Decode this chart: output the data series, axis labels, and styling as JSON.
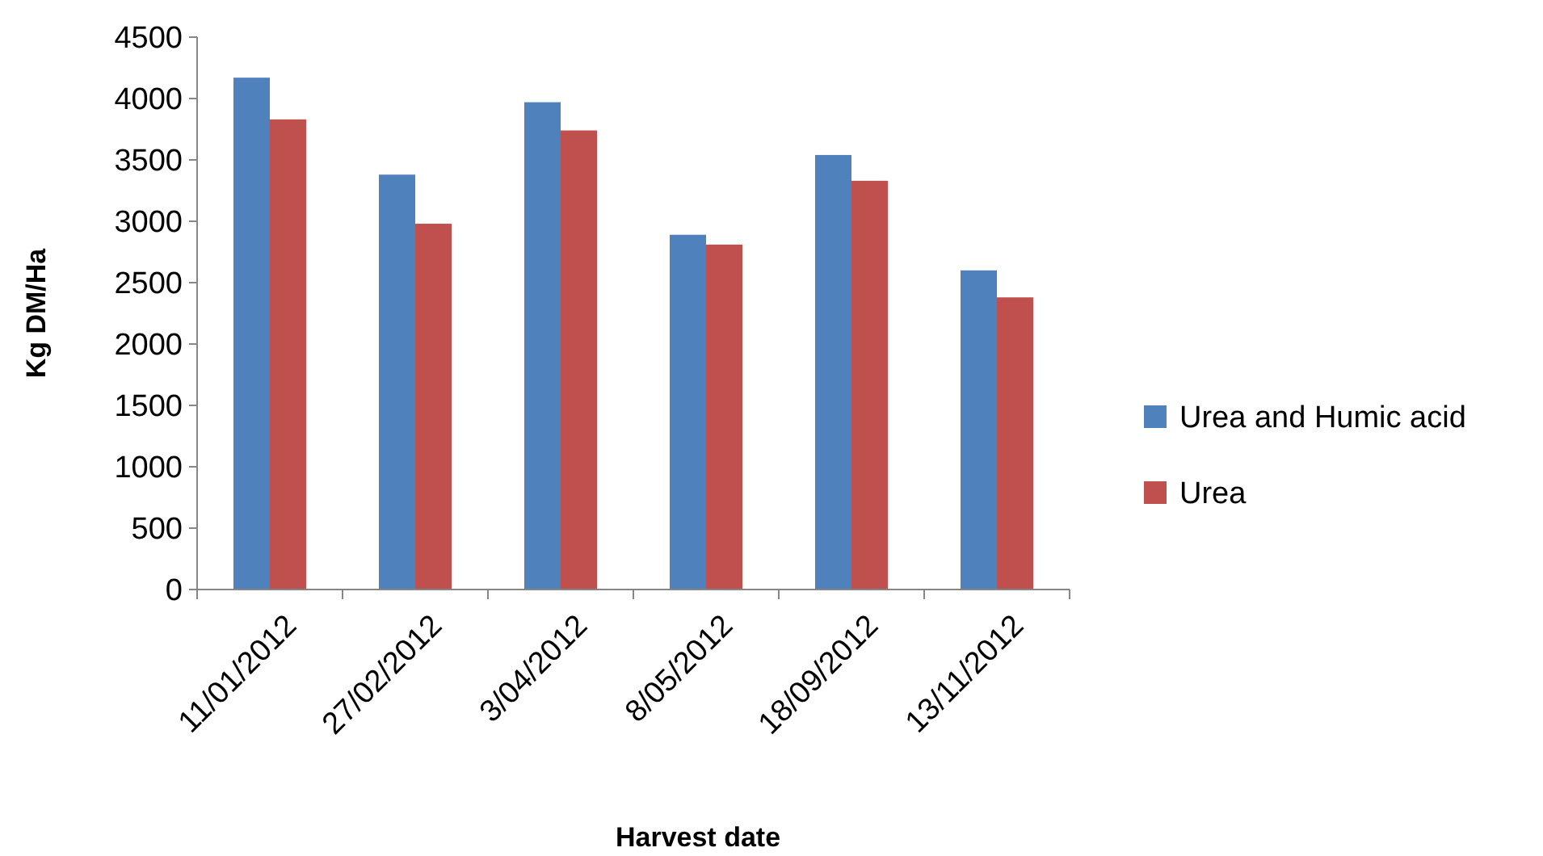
{
  "chart_data": {
    "type": "bar",
    "xlabel": "Harvest date",
    "ylabel": "Kg DM/Ha",
    "categories": [
      "11/01/2012",
      "27/02/2012",
      "3/04/2012",
      "8/05/2012",
      "18/09/2012",
      "13/11/2012"
    ],
    "series": [
      {
        "name": "Urea and Humic acid",
        "color": "#4f81bd",
        "values": [
          4170,
          3380,
          3970,
          2890,
          3540,
          2600
        ]
      },
      {
        "name": "Urea",
        "color": "#c0504d",
        "values": [
          3830,
          2980,
          3740,
          2810,
          3330,
          2380
        ]
      }
    ],
    "ylim": [
      0,
      4500
    ],
    "yticks": [
      0,
      500,
      1000,
      1500,
      2000,
      2500,
      3000,
      3500,
      4000,
      4500
    ],
    "grid": false,
    "legend": "right"
  }
}
